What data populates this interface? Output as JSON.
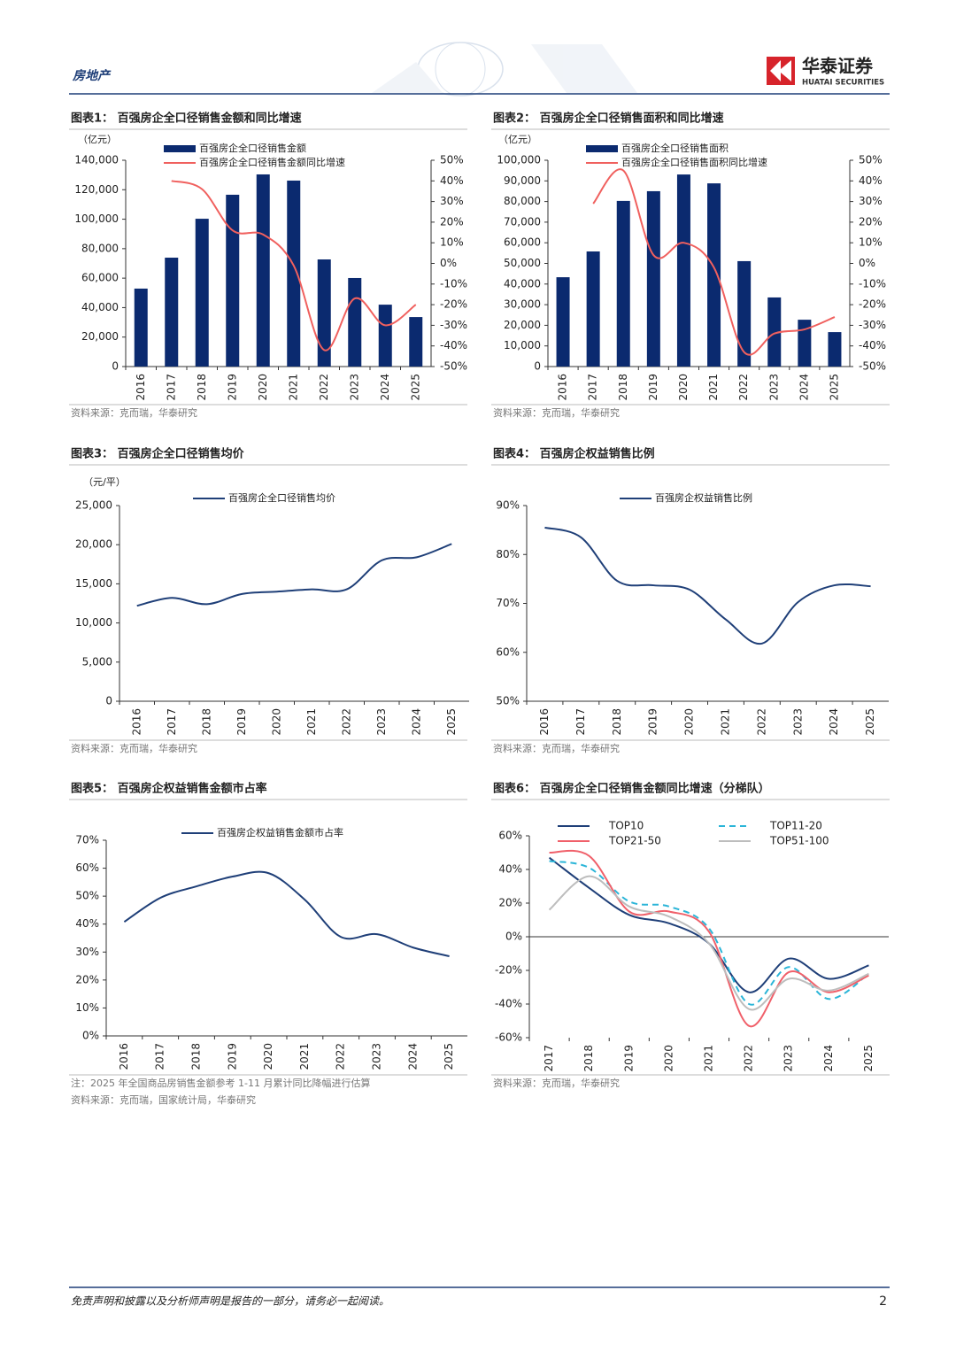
{
  "header": {
    "section": "房地产",
    "logo": "华泰证券",
    "logo_en": "HUATAI SECURITIES"
  },
  "footer": {
    "disclaimer": "免责声明和披露以及分析师声明是报告的一部分，请务必一起阅读。",
    "page": "2"
  },
  "chart_data": [
    {
      "type": "bar",
      "title": "图表1：  百强房企全口径销售金额和同比增速",
      "unit_label": "（亿元）",
      "sources": [
        "资料来源：克而瑞，华泰研究"
      ],
      "categories": [
        "2016",
        "2017",
        "2018",
        "2019",
        "2020",
        "2021",
        "2022",
        "2023",
        "2024",
        "2025"
      ],
      "series": [
        {
          "name": "百强房企全口径销售金额",
          "type": "bar",
          "color": "#0b2a6f",
          "values": [
            52900,
            73900,
            100300,
            116600,
            130400,
            126200,
            72700,
            60100,
            42000,
            33600
          ]
        },
        {
          "name": "百强房企全口径销售金额同比增速",
          "type": "line",
          "axis": "y2",
          "color": "#f0605e",
          "values": [
            null,
            40,
            36,
            16,
            14,
            -1,
            -42,
            -17,
            -30,
            -20
          ]
        }
      ],
      "ylim": [
        0,
        140000
      ],
      "yticks": [
        0,
        {
          "value": 20000,
          "label": "20,000"
        },
        {
          "value": 40000,
          "label": "40,000"
        },
        {
          "value": 60000,
          "label": "60,000"
        },
        {
          "value": 80000,
          "label": "80,000"
        },
        {
          "value": 100000,
          "label": "100,000"
        },
        {
          "value": 120000,
          "label": "120,000"
        },
        {
          "value": 140000,
          "label": "140,000"
        }
      ],
      "y2lim": [
        -50,
        50
      ],
      "y2ticks": [
        {
          "value": -50,
          "label": "-50%"
        },
        {
          "value": -40,
          "label": "-40%"
        },
        {
          "value": -30,
          "label": "-30%"
        },
        {
          "value": -20,
          "label": "-20%"
        },
        {
          "value": -10,
          "label": "-10%"
        },
        {
          "value": 0,
          "label": "0%"
        },
        {
          "value": 10,
          "label": "10%"
        },
        {
          "value": 20,
          "label": "20%"
        },
        {
          "value": 30,
          "label": "30%"
        },
        {
          "value": 40,
          "label": "40%"
        },
        {
          "value": 50,
          "label": "50%"
        }
      ],
      "legend": "top-left"
    },
    {
      "type": "bar",
      "title": "图表2：  百强房企全口径销售面积和同比增速",
      "unit_label": "（亿元）",
      "sources": [
        "资料来源：克而瑞，华泰研究"
      ],
      "categories": [
        "2016",
        "2017",
        "2018",
        "2019",
        "2020",
        "2021",
        "2022",
        "2023",
        "2024",
        "2025"
      ],
      "series": [
        {
          "name": "百强房企全口径销售面积",
          "type": "bar",
          "color": "#0b2a6f",
          "values": [
            43300,
            55800,
            80300,
            85000,
            93100,
            88800,
            51100,
            33500,
            22700,
            16700
          ]
        },
        {
          "name": "百强房企全口径销售面积同比增速",
          "type": "line",
          "axis": "y2",
          "color": "#f0605e",
          "values": [
            null,
            29,
            45,
            4,
            10,
            -2,
            -43,
            -34,
            -32,
            -26
          ]
        }
      ],
      "ylim": [
        0,
        100000
      ],
      "yticks": [
        0,
        {
          "value": 10000,
          "label": "10,000"
        },
        {
          "value": 20000,
          "label": "20,000"
        },
        {
          "value": 30000,
          "label": "30,000"
        },
        {
          "value": 40000,
          "label": "40,000"
        },
        {
          "value": 50000,
          "label": "50,000"
        },
        {
          "value": 60000,
          "label": "60,000"
        },
        {
          "value": 70000,
          "label": "70,000"
        },
        {
          "value": 80000,
          "label": "80,000"
        },
        {
          "value": 90000,
          "label": "90,000"
        },
        {
          "value": 100000,
          "label": "100,000"
        }
      ],
      "y2lim": [
        -50,
        50
      ],
      "y2ticks": [
        {
          "value": -50,
          "label": "-50%"
        },
        {
          "value": -40,
          "label": "-40%"
        },
        {
          "value": -30,
          "label": "-30%"
        },
        {
          "value": -20,
          "label": "-20%"
        },
        {
          "value": -10,
          "label": "-10%"
        },
        {
          "value": 0,
          "label": "0%"
        },
        {
          "value": 10,
          "label": "10%"
        },
        {
          "value": 20,
          "label": "20%"
        },
        {
          "value": 30,
          "label": "30%"
        },
        {
          "value": 40,
          "label": "40%"
        },
        {
          "value": 50,
          "label": "50%"
        }
      ],
      "legend": "top-left"
    },
    {
      "type": "line",
      "title": "图表3：  百强房企全口径销售均价",
      "unit_label": "（元/平）",
      "sources": [
        "资料来源：克而瑞，华泰研究"
      ],
      "categories": [
        "2016",
        "2017",
        "2018",
        "2019",
        "2020",
        "2021",
        "2022",
        "2023",
        "2024",
        "2025"
      ],
      "series": [
        {
          "name": "百强房企全口径销售均价",
          "color": "#1f3f78",
          "values": [
            12200,
            13200,
            12400,
            13700,
            14000,
            14300,
            14300,
            18000,
            18400,
            20100
          ]
        }
      ],
      "ylim": [
        0,
        25000
      ],
      "yticks": [
        0,
        {
          "value": 5000,
          "label": "5,000"
        },
        {
          "value": 10000,
          "label": "10,000"
        },
        {
          "value": 15000,
          "label": "15,000"
        },
        {
          "value": 20000,
          "label": "20,000"
        },
        {
          "value": 25000,
          "label": "25,000"
        }
      ],
      "legend": "top"
    },
    {
      "type": "line",
      "title": "图表4：  百强房企权益销售比例",
      "sources": [
        "资料来源：克而瑞，华泰研究"
      ],
      "categories": [
        "2016",
        "2017",
        "2018",
        "2019",
        "2020",
        "2021",
        "2022",
        "2023",
        "2024",
        "2025"
      ],
      "series": [
        {
          "name": "百强房企权益销售比例",
          "color": "#1f3f78",
          "values": [
            85.5,
            83.5,
            74.6,
            73.7,
            72.8,
            66.7,
            61.8,
            70.3,
            73.7,
            73.5
          ]
        }
      ],
      "ylim": [
        50,
        90
      ],
      "yticks": [
        {
          "value": 50,
          "label": "50%"
        },
        {
          "value": 60,
          "label": "60%"
        },
        {
          "value": 70,
          "label": "70%"
        },
        {
          "value": 80,
          "label": "80%"
        },
        {
          "value": 90,
          "label": "90%"
        }
      ],
      "legend": "top"
    },
    {
      "type": "line",
      "title": "图表5：  百强房企权益销售金额市占率",
      "sources": [
        "注：2025 年全国商品房销售金额参考 1-11 月累计同比降幅进行估算",
        "资料来源：克而瑞，国家统计局，华泰研究"
      ],
      "categories": [
        "2016",
        "2017",
        "2018",
        "2019",
        "2020",
        "2021",
        "2022",
        "2023",
        "2024",
        "2025"
      ],
      "series": [
        {
          "name": "百强房企权益销售金额市占率",
          "color": "#1f3f78",
          "values": [
            40.8,
            49.4,
            53.5,
            57,
            58.2,
            48.7,
            35.4,
            36.4,
            31.6,
            28.5
          ]
        }
      ],
      "ylim": [
        0,
        70
      ],
      "yticks": [
        {
          "value": 0,
          "label": "0%"
        },
        {
          "value": 10,
          "label": "10%"
        },
        {
          "value": 20,
          "label": "20%"
        },
        {
          "value": 30,
          "label": "30%"
        },
        {
          "value": 40,
          "label": "40%"
        },
        {
          "value": 50,
          "label": "50%"
        },
        {
          "value": 60,
          "label": "60%"
        },
        {
          "value": 70,
          "label": "70%"
        }
      ],
      "legend": "top"
    },
    {
      "type": "line",
      "title": "图表6：  百强房企全口径销售金额同比增速（分梯队）",
      "sources": [
        "资料来源：克而瑞，华泰研究"
      ],
      "categories": [
        "2017",
        "2018",
        "2019",
        "2020",
        "2021",
        "2022",
        "2023",
        "2024",
        "2025"
      ],
      "series": [
        {
          "name": "TOP10",
          "color": "#1f3f78",
          "linestyle": "solid",
          "values": [
            47,
            29,
            13,
            8,
            -4,
            -33,
            -13,
            -25,
            -17
          ]
        },
        {
          "name": "TOP11-20",
          "color": "#2bb5d8",
          "linestyle": "dashed",
          "values": [
            45,
            41,
            21,
            18,
            5,
            -40,
            -18,
            -37,
            -22
          ]
        },
        {
          "name": "TOP21-50",
          "color": "#f0606a",
          "linestyle": "solid",
          "values": [
            50,
            48,
            15,
            15,
            3,
            -53,
            -21,
            -33,
            -23
          ]
        },
        {
          "name": "TOP51-100",
          "color": "#bdbdbd",
          "linestyle": "solid",
          "values": [
            16,
            36,
            18,
            12,
            -4,
            -43,
            -25,
            -32,
            -22
          ]
        }
      ],
      "ylim": [
        -60,
        60
      ],
      "yticks": [
        {
          "value": -60,
          "label": "-60%"
        },
        {
          "value": -40,
          "label": "-40%"
        },
        {
          "value": -20,
          "label": "-20%"
        },
        {
          "value": 0,
          "label": "0%"
        },
        {
          "value": 20,
          "label": "20%"
        },
        {
          "value": 40,
          "label": "40%"
        },
        {
          "value": 60,
          "label": "60%"
        }
      ],
      "legend": "top"
    }
  ]
}
